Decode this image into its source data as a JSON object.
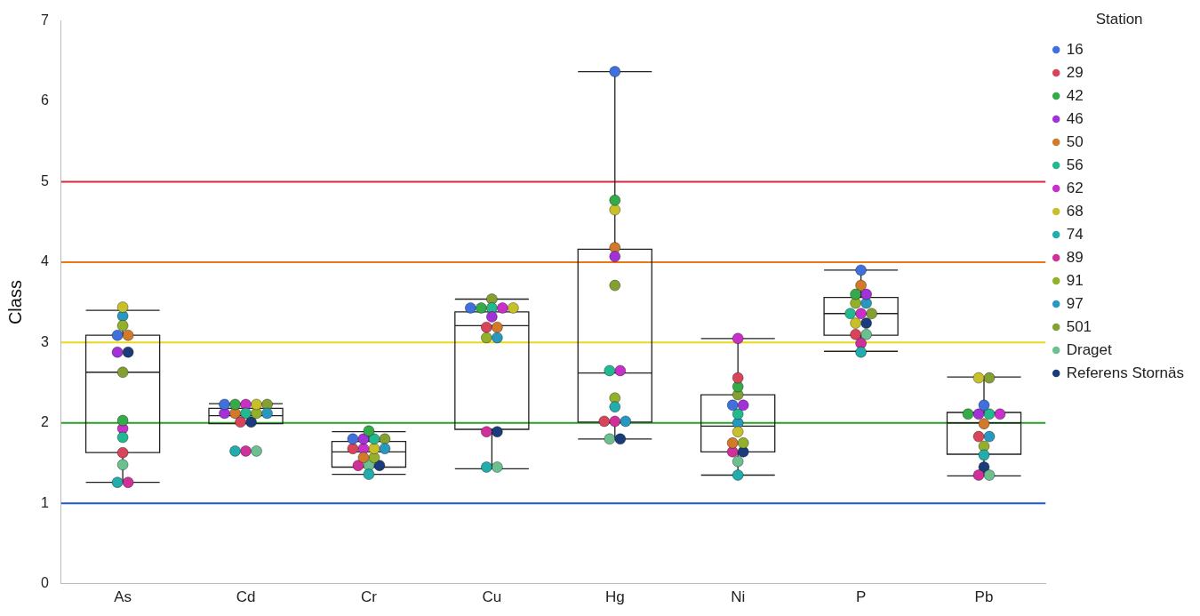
{
  "chart_data": {
    "type": "box",
    "ylabel": "Class",
    "legend_title": "Station",
    "legend": "top right",
    "marker": "circle",
    "categories": [
      "As",
      "Cd",
      "Cr",
      "Cu",
      "Hg",
      "Ni",
      "P",
      "Pb"
    ],
    "ylim": [
      0,
      7
    ],
    "yticks": [
      0,
      1,
      2,
      3,
      4,
      5,
      6,
      7
    ],
    "boxes": [
      {
        "low": 1.26,
        "q1": 1.63,
        "median": 2.63,
        "q3": 3.09,
        "high": 3.4
      },
      {
        "low": 1.99,
        "q1": 1.99,
        "median": 2.09,
        "q3": 2.18,
        "high": 2.24
      },
      {
        "low": 1.36,
        "q1": 1.45,
        "median": 1.64,
        "q3": 1.77,
        "high": 1.89
      },
      {
        "low": 1.43,
        "q1": 1.92,
        "median": 3.21,
        "q3": 3.38,
        "high": 3.54
      },
      {
        "low": 1.8,
        "q1": 2.01,
        "median": 2.62,
        "q3": 4.16,
        "high": 6.37
      },
      {
        "low": 1.35,
        "q1": 1.64,
        "median": 1.96,
        "q3": 2.35,
        "high": 3.05
      },
      {
        "low": 2.89,
        "q1": 3.09,
        "median": 3.36,
        "q3": 3.56,
        "high": 3.9
      },
      {
        "low": 1.34,
        "q1": 1.61,
        "median": 2.0,
        "q3": 2.13,
        "high": 2.57
      }
    ],
    "ref_lines": [
      {
        "axis": "y",
        "value": 5,
        "color": "#d8283c"
      },
      {
        "axis": "y",
        "value": 4,
        "color": "#e87818"
      },
      {
        "axis": "y",
        "value": 3,
        "color": "#e8d820"
      },
      {
        "axis": "y",
        "value": 2,
        "color": "#28a028"
      },
      {
        "axis": "y",
        "value": 1,
        "color": "#1858d0"
      }
    ],
    "series": [
      {
        "name": "16",
        "type": "scatter",
        "color": "#4070dc",
        "x": [
          "As",
          "Cd",
          "Cr",
          "Cu",
          "Hg",
          "Ni",
          "P",
          "Pb"
        ],
        "values": [
          3.09,
          2.23,
          1.8,
          3.43,
          6.37,
          2.22,
          3.9,
          2.22
        ]
      },
      {
        "name": "29",
        "type": "scatter",
        "color": "#d8445a",
        "x": [
          "As",
          "Cd",
          "Cr",
          "Cu",
          "Hg",
          "Ni",
          "P",
          "Pb"
        ],
        "values": [
          1.63,
          2.01,
          1.68,
          3.19,
          2.02,
          2.56,
          3.1,
          1.83
        ]
      },
      {
        "name": "42",
        "type": "scatter",
        "color": "#34aa48",
        "x": [
          "As",
          "Cd",
          "Cr",
          "Cu",
          "Hg",
          "Ni",
          "P",
          "Pb"
        ],
        "values": [
          2.03,
          2.23,
          1.9,
          3.43,
          4.77,
          2.45,
          3.6,
          2.11
        ]
      },
      {
        "name": "46",
        "type": "scatter",
        "color": "#a232d8",
        "x": [
          "As",
          "Cd",
          "Cr",
          "Cu",
          "Hg",
          "Ni",
          "P",
          "Pb"
        ],
        "values": [
          2.88,
          2.12,
          1.8,
          3.32,
          4.07,
          2.22,
          3.6,
          2.11
        ]
      },
      {
        "name": "50",
        "type": "scatter",
        "color": "#d07a2a",
        "x": [
          "As",
          "Cd",
          "Cr",
          "Cu",
          "Hg",
          "Ni",
          "P",
          "Pb"
        ],
        "values": [
          3.09,
          2.12,
          1.57,
          3.19,
          4.18,
          1.75,
          3.71,
          1.99
        ]
      },
      {
        "name": "56",
        "type": "scatter",
        "color": "#22b890",
        "x": [
          "As",
          "Cd",
          "Cr",
          "Cu",
          "Hg",
          "Ni",
          "P",
          "Pb"
        ],
        "values": [
          1.82,
          2.12,
          1.8,
          3.43,
          2.65,
          2.11,
          3.36,
          2.11
        ]
      },
      {
        "name": "62",
        "type": "scatter",
        "color": "#c830c8",
        "x": [
          "As",
          "Cd",
          "Cr",
          "Cu",
          "Hg",
          "Ni",
          "P",
          "Pb"
        ],
        "values": [
          1.93,
          2.23,
          1.68,
          3.43,
          2.65,
          3.05,
          3.36,
          2.11
        ]
      },
      {
        "name": "68",
        "type": "scatter",
        "color": "#c8c02a",
        "x": [
          "As",
          "Cd",
          "Cr",
          "Cu",
          "Hg",
          "Ni",
          "P",
          "Pb"
        ],
        "values": [
          3.44,
          2.23,
          1.68,
          3.43,
          4.65,
          1.89,
          3.24,
          2.56
        ]
      },
      {
        "name": "74",
        "type": "scatter",
        "color": "#22acac",
        "x": [
          "As",
          "Cd",
          "Cr",
          "Cu",
          "Hg",
          "Ni",
          "P",
          "Pb"
        ],
        "values": [
          1.26,
          1.65,
          1.36,
          1.45,
          2.2,
          1.35,
          2.88,
          1.6
        ]
      },
      {
        "name": "89",
        "type": "scatter",
        "color": "#d0309a",
        "x": [
          "As",
          "Cd",
          "Cr",
          "Cu",
          "Hg",
          "Ni",
          "P",
          "Pb"
        ],
        "values": [
          1.26,
          1.65,
          1.47,
          1.89,
          2.02,
          1.64,
          2.99,
          1.35
        ]
      },
      {
        "name": "91",
        "type": "scatter",
        "color": "#92b02a",
        "x": [
          "As",
          "Cd",
          "Cr",
          "Cu",
          "Hg",
          "Ni",
          "P",
          "Pb"
        ],
        "values": [
          3.21,
          2.12,
          1.57,
          3.06,
          2.31,
          1.75,
          3.49,
          1.71
        ]
      },
      {
        "name": "97",
        "type": "scatter",
        "color": "#2898c0",
        "x": [
          "As",
          "Cd",
          "Cr",
          "Cu",
          "Hg",
          "Ni",
          "P",
          "Pb"
        ],
        "values": [
          3.33,
          2.12,
          1.68,
          3.06,
          2.02,
          2.0,
          3.49,
          1.83
        ]
      },
      {
        "name": "501",
        "type": "scatter",
        "color": "#84a032",
        "x": [
          "As",
          "Cd",
          "Cr",
          "Cu",
          "Hg",
          "Ni",
          "P",
          "Pb"
        ],
        "values": [
          2.63,
          2.23,
          1.8,
          3.54,
          3.71,
          2.35,
          3.36,
          2.56
        ]
      },
      {
        "name": "Draget",
        "type": "scatter",
        "color": "#6cc090",
        "x": [
          "As",
          "Cd",
          "Cr",
          "Cu",
          "Hg",
          "Ni",
          "P",
          "Pb"
        ],
        "values": [
          1.48,
          1.65,
          1.47,
          1.45,
          1.8,
          1.52,
          3.1,
          1.35
        ]
      },
      {
        "name": "Referens Stornäs",
        "type": "scatter",
        "color": "#1a3c7a",
        "x": [
          "As",
          "Cd",
          "Cr",
          "Cu",
          "Hg",
          "Ni",
          "P",
          "Pb"
        ],
        "values": [
          2.88,
          2.01,
          1.47,
          1.89,
          1.8,
          1.64,
          3.24,
          1.45
        ]
      }
    ]
  }
}
